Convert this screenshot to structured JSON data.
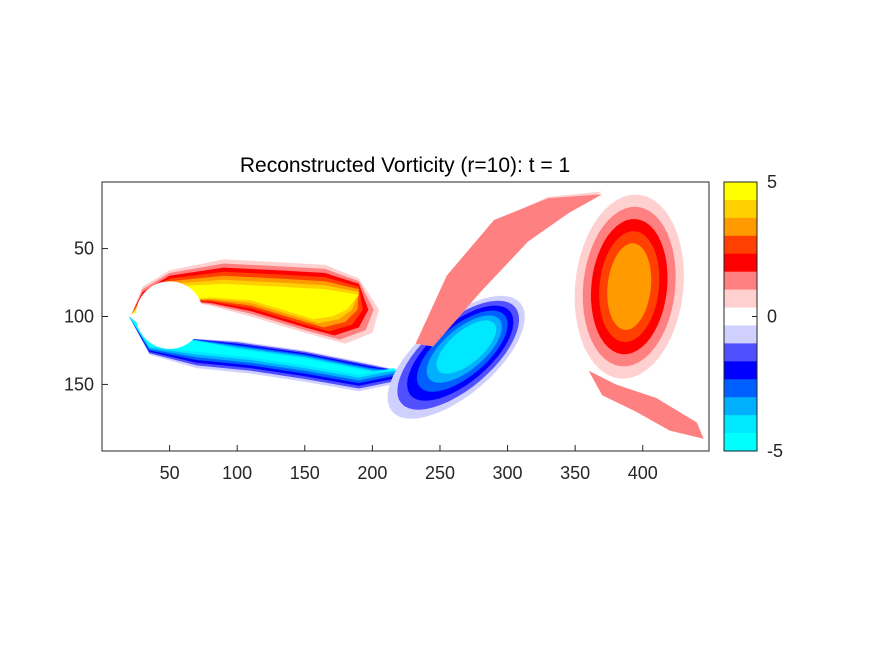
{
  "chart_data": {
    "type": "heatmap",
    "title": "Reconstructed Vorticity (r=10): t = 1",
    "xlabel": "",
    "ylabel": "",
    "x_ticks": [
      50,
      100,
      150,
      200,
      250,
      300,
      350,
      400
    ],
    "y_ticks": [
      50,
      100,
      150
    ],
    "xlim": [
      0,
      449
    ],
    "ylim": [
      1,
      199
    ],
    "y_reversed": true,
    "clim": [
      -5,
      5
    ],
    "colorbar": {
      "ticks": [
        5,
        0,
        -5
      ],
      "colors_top_to_bottom": [
        "#ffff00",
        "#ffd000",
        "#ff9a00",
        "#ff4000",
        "#ff0000",
        "#ff8080",
        "#ffd0d0",
        "#ffffff",
        "#d0d0ff",
        "#5050ff",
        "#0000ff",
        "#0060ff",
        "#00b0ff",
        "#00e8ff",
        "#00ffff"
      ],
      "location": "right"
    },
    "cylinder": {
      "center": [
        50,
        99
      ],
      "radius": 25
    },
    "vortex_features": [
      {
        "sign": "positive",
        "x": 150,
        "y": 82,
        "peak": 5,
        "note": "upper shear layer / attached"
      },
      {
        "sign": "negative",
        "x": 55,
        "y": 118,
        "peak": -5,
        "note": "lower shear layer"
      },
      {
        "sign": "negative",
        "x": 265,
        "y": 125,
        "peak": -3.5
      },
      {
        "sign": "positive",
        "x": 390,
        "y": 75,
        "peak": 2.2
      }
    ]
  }
}
